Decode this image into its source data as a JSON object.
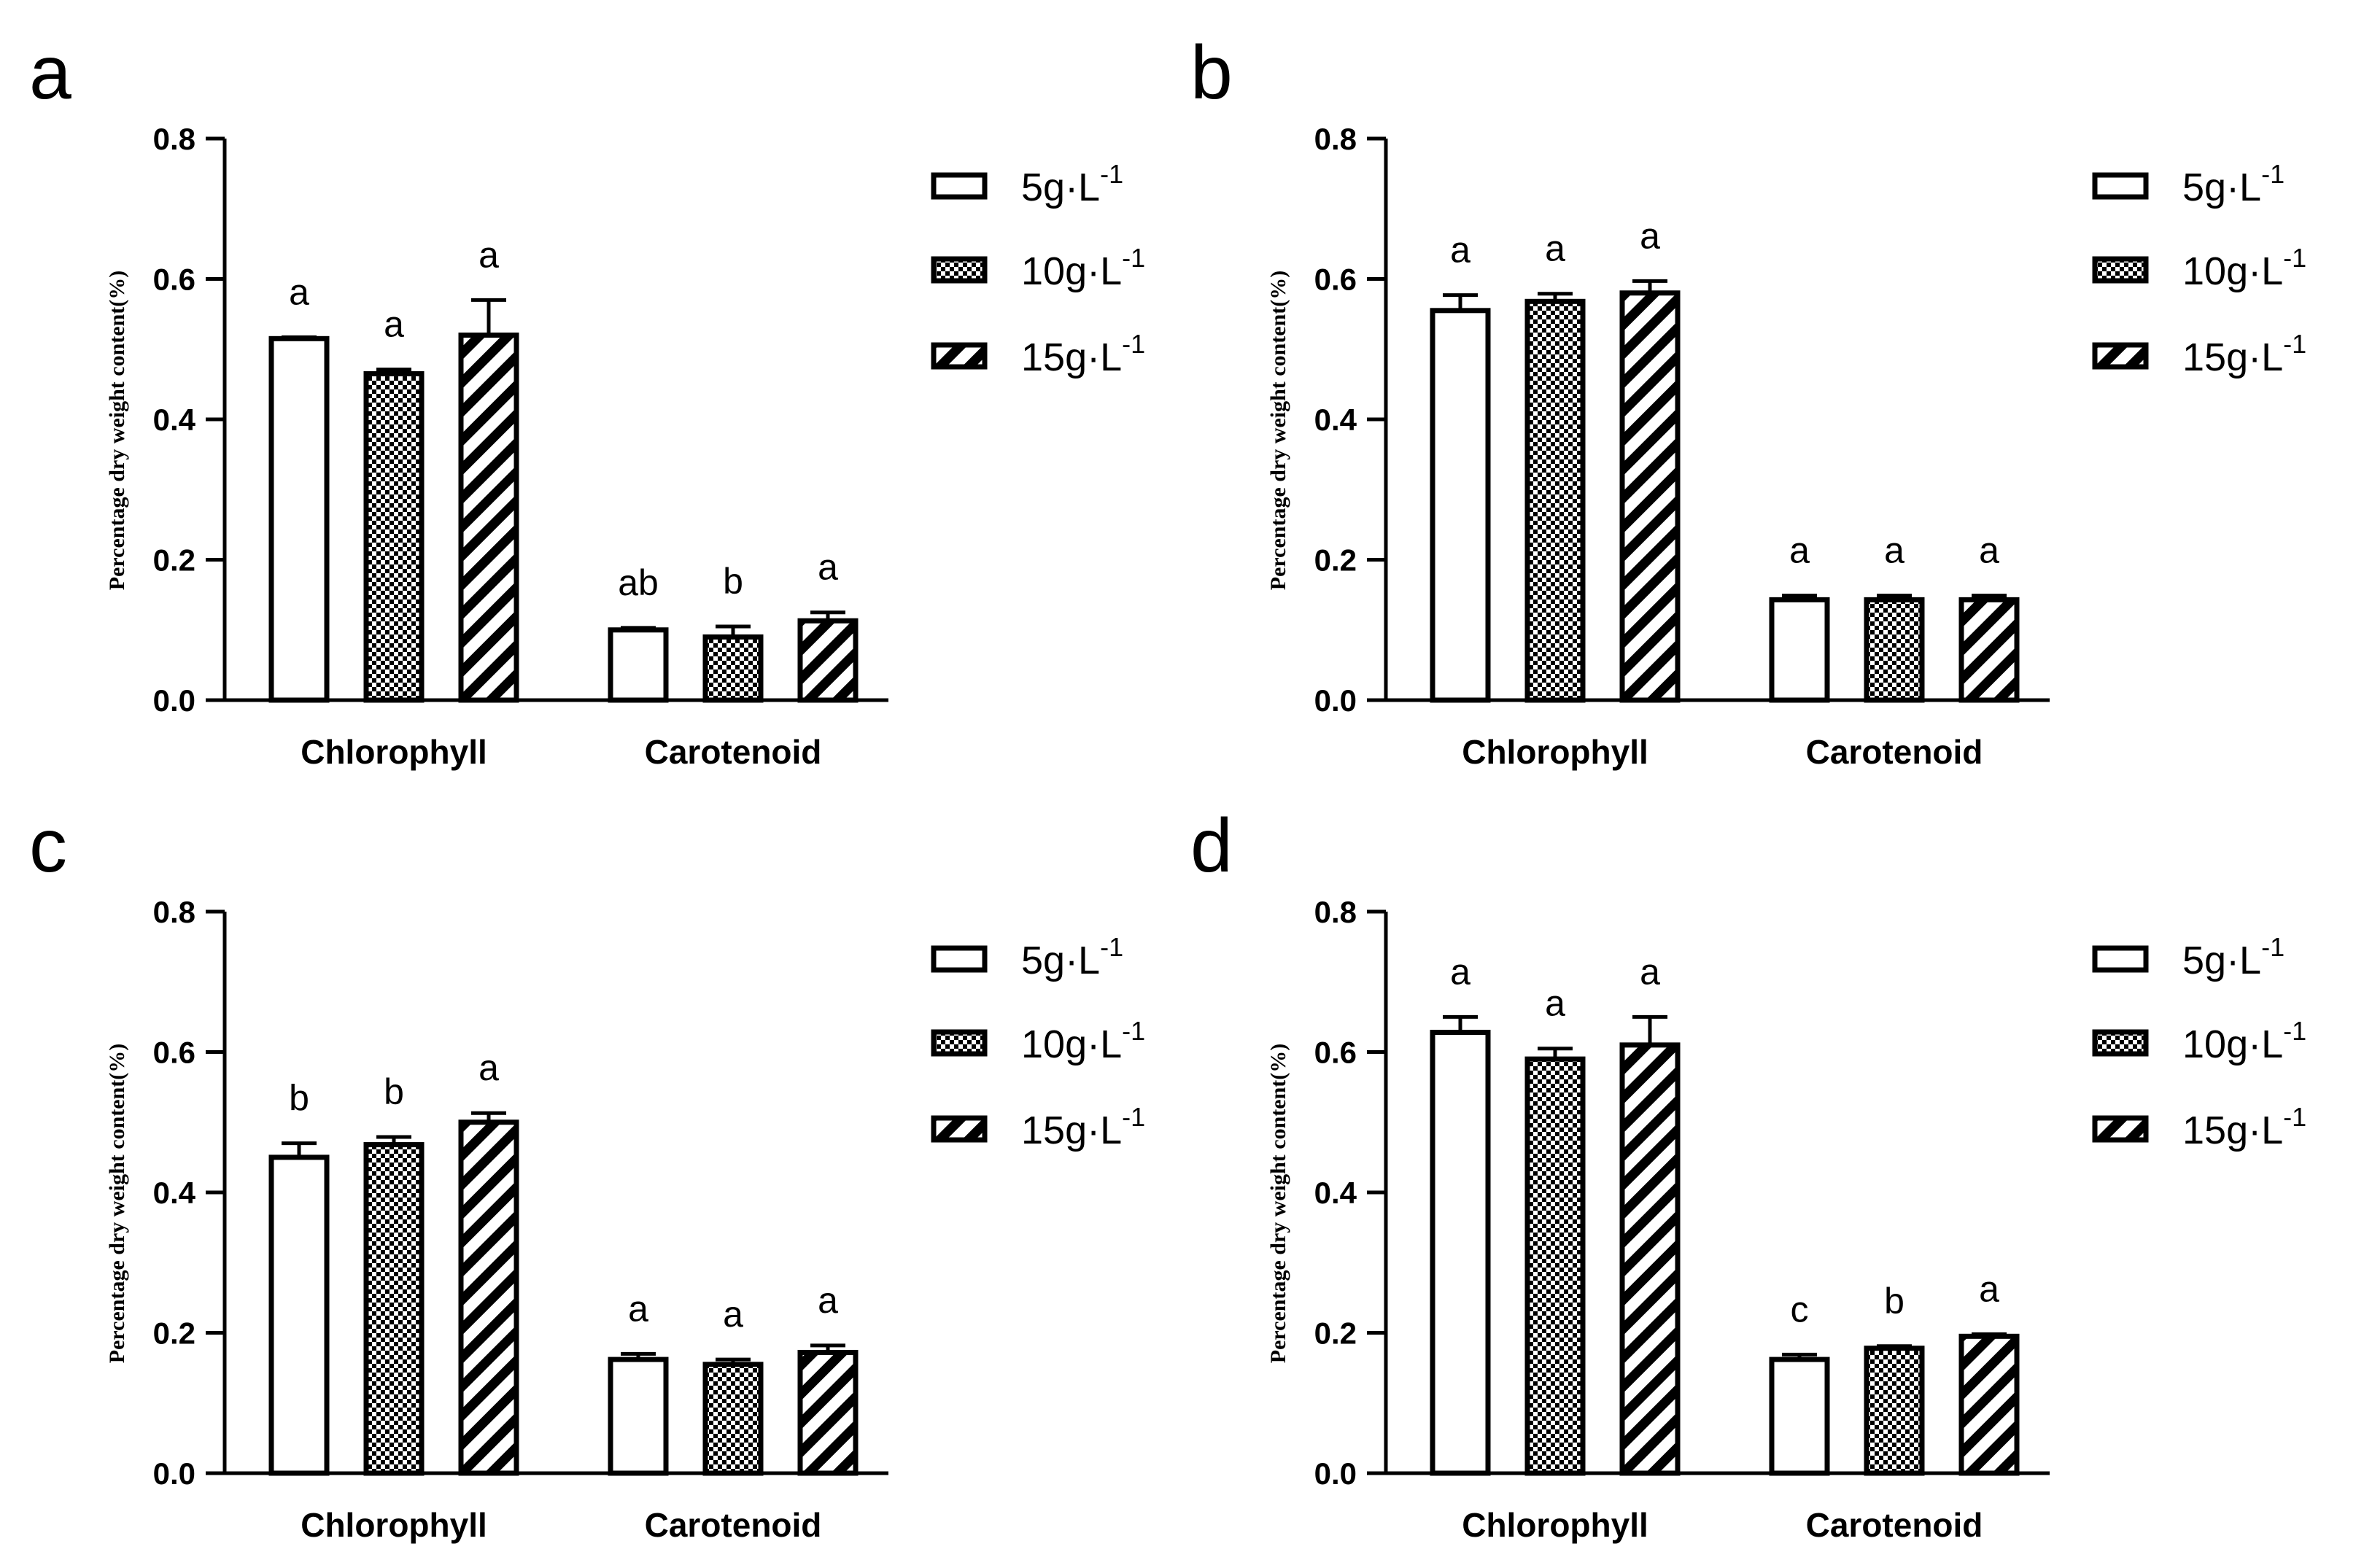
{
  "legend_labels": [
    {
      "base": "5g·L",
      "sup": "-1"
    },
    {
      "base": "10g·L",
      "sup": "-1"
    },
    {
      "base": "15g·L",
      "sup": "-1"
    }
  ],
  "colors": {
    "ink": "#000000",
    "background": "#ffffff"
  },
  "chart_data": [
    {
      "panel": "a",
      "type": "bar",
      "ylabel": "Percentage dry weight content(%)",
      "xlabel": "",
      "ylim": [
        0,
        0.8
      ],
      "yticks": [
        "0.0",
        "0.2",
        "0.4",
        "0.6",
        "0.8"
      ],
      "categories": [
        "Chlorophyll",
        "Carotenoid"
      ],
      "legend_position": "right",
      "series": [
        {
          "name": "5g·L-1",
          "pattern": "open",
          "values": [
            0.515,
            0.1
          ],
          "errors": [
            0.002,
            0.003
          ],
          "letters": [
            "a",
            "ab"
          ]
        },
        {
          "name": "10g·L-1",
          "pattern": "checker",
          "values": [
            0.465,
            0.09
          ],
          "errors": [
            0.006,
            0.015
          ],
          "letters": [
            "a",
            "b"
          ]
        },
        {
          "name": "15g·L-1",
          "pattern": "hatch",
          "values": [
            0.52,
            0.113
          ],
          "errors": [
            0.05,
            0.012
          ],
          "letters": [
            "a",
            "a"
          ]
        }
      ]
    },
    {
      "panel": "b",
      "type": "bar",
      "ylabel": "Percentage dry weight content(%)",
      "xlabel": "",
      "ylim": [
        0,
        0.8
      ],
      "yticks": [
        "0.0",
        "0.2",
        "0.4",
        "0.6",
        "0.8"
      ],
      "categories": [
        "Chlorophyll",
        "Carotenoid"
      ],
      "legend_position": "right",
      "series": [
        {
          "name": "5g·L-1",
          "pattern": "open",
          "values": [
            0.555,
            0.143
          ],
          "errors": [
            0.022,
            0.006
          ],
          "letters": [
            "a",
            "a"
          ]
        },
        {
          "name": "10g·L-1",
          "pattern": "checker",
          "values": [
            0.568,
            0.143
          ],
          "errors": [
            0.011,
            0.006
          ],
          "letters": [
            "a",
            "a"
          ]
        },
        {
          "name": "15g·L-1",
          "pattern": "hatch",
          "values": [
            0.58,
            0.143
          ],
          "errors": [
            0.017,
            0.006
          ],
          "letters": [
            "a",
            "a"
          ]
        }
      ]
    },
    {
      "panel": "c",
      "type": "bar",
      "ylabel": "Percentage dry weight content(%)",
      "xlabel": "",
      "ylim": [
        0,
        0.8
      ],
      "yticks": [
        "0.0",
        "0.2",
        "0.4",
        "0.6",
        "0.8"
      ],
      "categories": [
        "Chlorophyll",
        "Carotenoid"
      ],
      "legend_position": "right",
      "series": [
        {
          "name": "5g·L-1",
          "pattern": "open",
          "values": [
            0.45,
            0.162
          ],
          "errors": [
            0.02,
            0.008
          ],
          "letters": [
            "b",
            "a"
          ]
        },
        {
          "name": "10g·L-1",
          "pattern": "checker",
          "values": [
            0.468,
            0.155
          ],
          "errors": [
            0.011,
            0.007
          ],
          "letters": [
            "b",
            "a"
          ]
        },
        {
          "name": "15g·L-1",
          "pattern": "hatch",
          "values": [
            0.5,
            0.172
          ],
          "errors": [
            0.013,
            0.01
          ],
          "letters": [
            "a",
            "a"
          ]
        }
      ]
    },
    {
      "panel": "d",
      "type": "bar",
      "ylabel": "Percentage dry weight content(%)",
      "xlabel": "",
      "ylim": [
        0,
        0.8
      ],
      "yticks": [
        "0.0",
        "0.2",
        "0.4",
        "0.6",
        "0.8"
      ],
      "categories": [
        "Chlorophyll",
        "Carotenoid"
      ],
      "legend_position": "right",
      "series": [
        {
          "name": "5g·L-1",
          "pattern": "open",
          "values": [
            0.628,
            0.162
          ],
          "errors": [
            0.022,
            0.007
          ],
          "letters": [
            "a",
            "c"
          ]
        },
        {
          "name": "10g·L-1",
          "pattern": "checker",
          "values": [
            0.59,
            0.178
          ],
          "errors": [
            0.015,
            0.003
          ],
          "letters": [
            "a",
            "b"
          ]
        },
        {
          "name": "15g·L-1",
          "pattern": "hatch",
          "values": [
            0.61,
            0.195
          ],
          "errors": [
            0.04,
            0.003
          ],
          "letters": [
            "a",
            "a"
          ]
        }
      ]
    }
  ]
}
